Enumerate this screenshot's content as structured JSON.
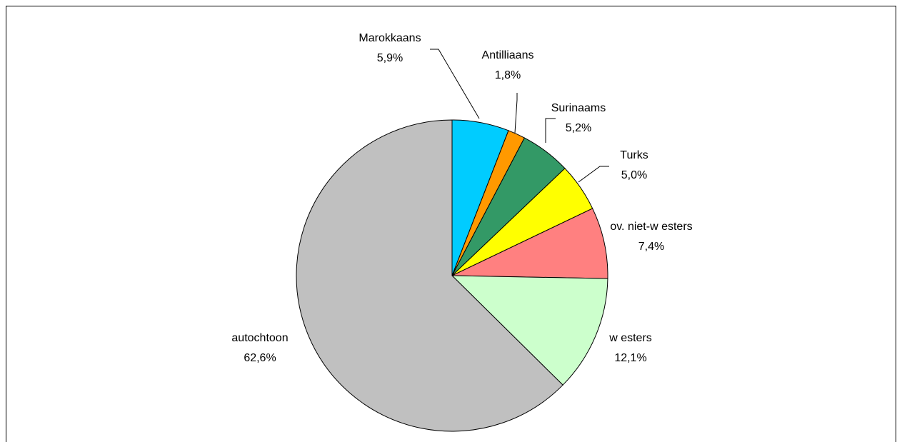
{
  "chart_data": {
    "type": "pie",
    "start_angle_deg": 0,
    "direction": "clockwise",
    "slices": [
      {
        "label": "Marokkaans",
        "value": 5.9,
        "value_label": "5,9%",
        "color": "#00CCFF"
      },
      {
        "label": "Antilliaans",
        "value": 1.8,
        "value_label": "1,8%",
        "color": "#FF9900"
      },
      {
        "label": "Surinaams",
        "value": 5.2,
        "value_label": "5,2%",
        "color": "#339966"
      },
      {
        "label": "Turks",
        "value": 5.0,
        "value_label": "5,0%",
        "color": "#FFFF00"
      },
      {
        "label": "ov. niet-w esters",
        "value": 7.4,
        "value_label": "7,4%",
        "color": "#FF8080"
      },
      {
        "label": "w esters",
        "value": 12.1,
        "value_label": "12,1%",
        "color": "#CCFFCC"
      },
      {
        "label": "autochtoon",
        "value": 62.6,
        "value_label": "62,6%",
        "color": "#C0C0C0"
      }
    ]
  }
}
